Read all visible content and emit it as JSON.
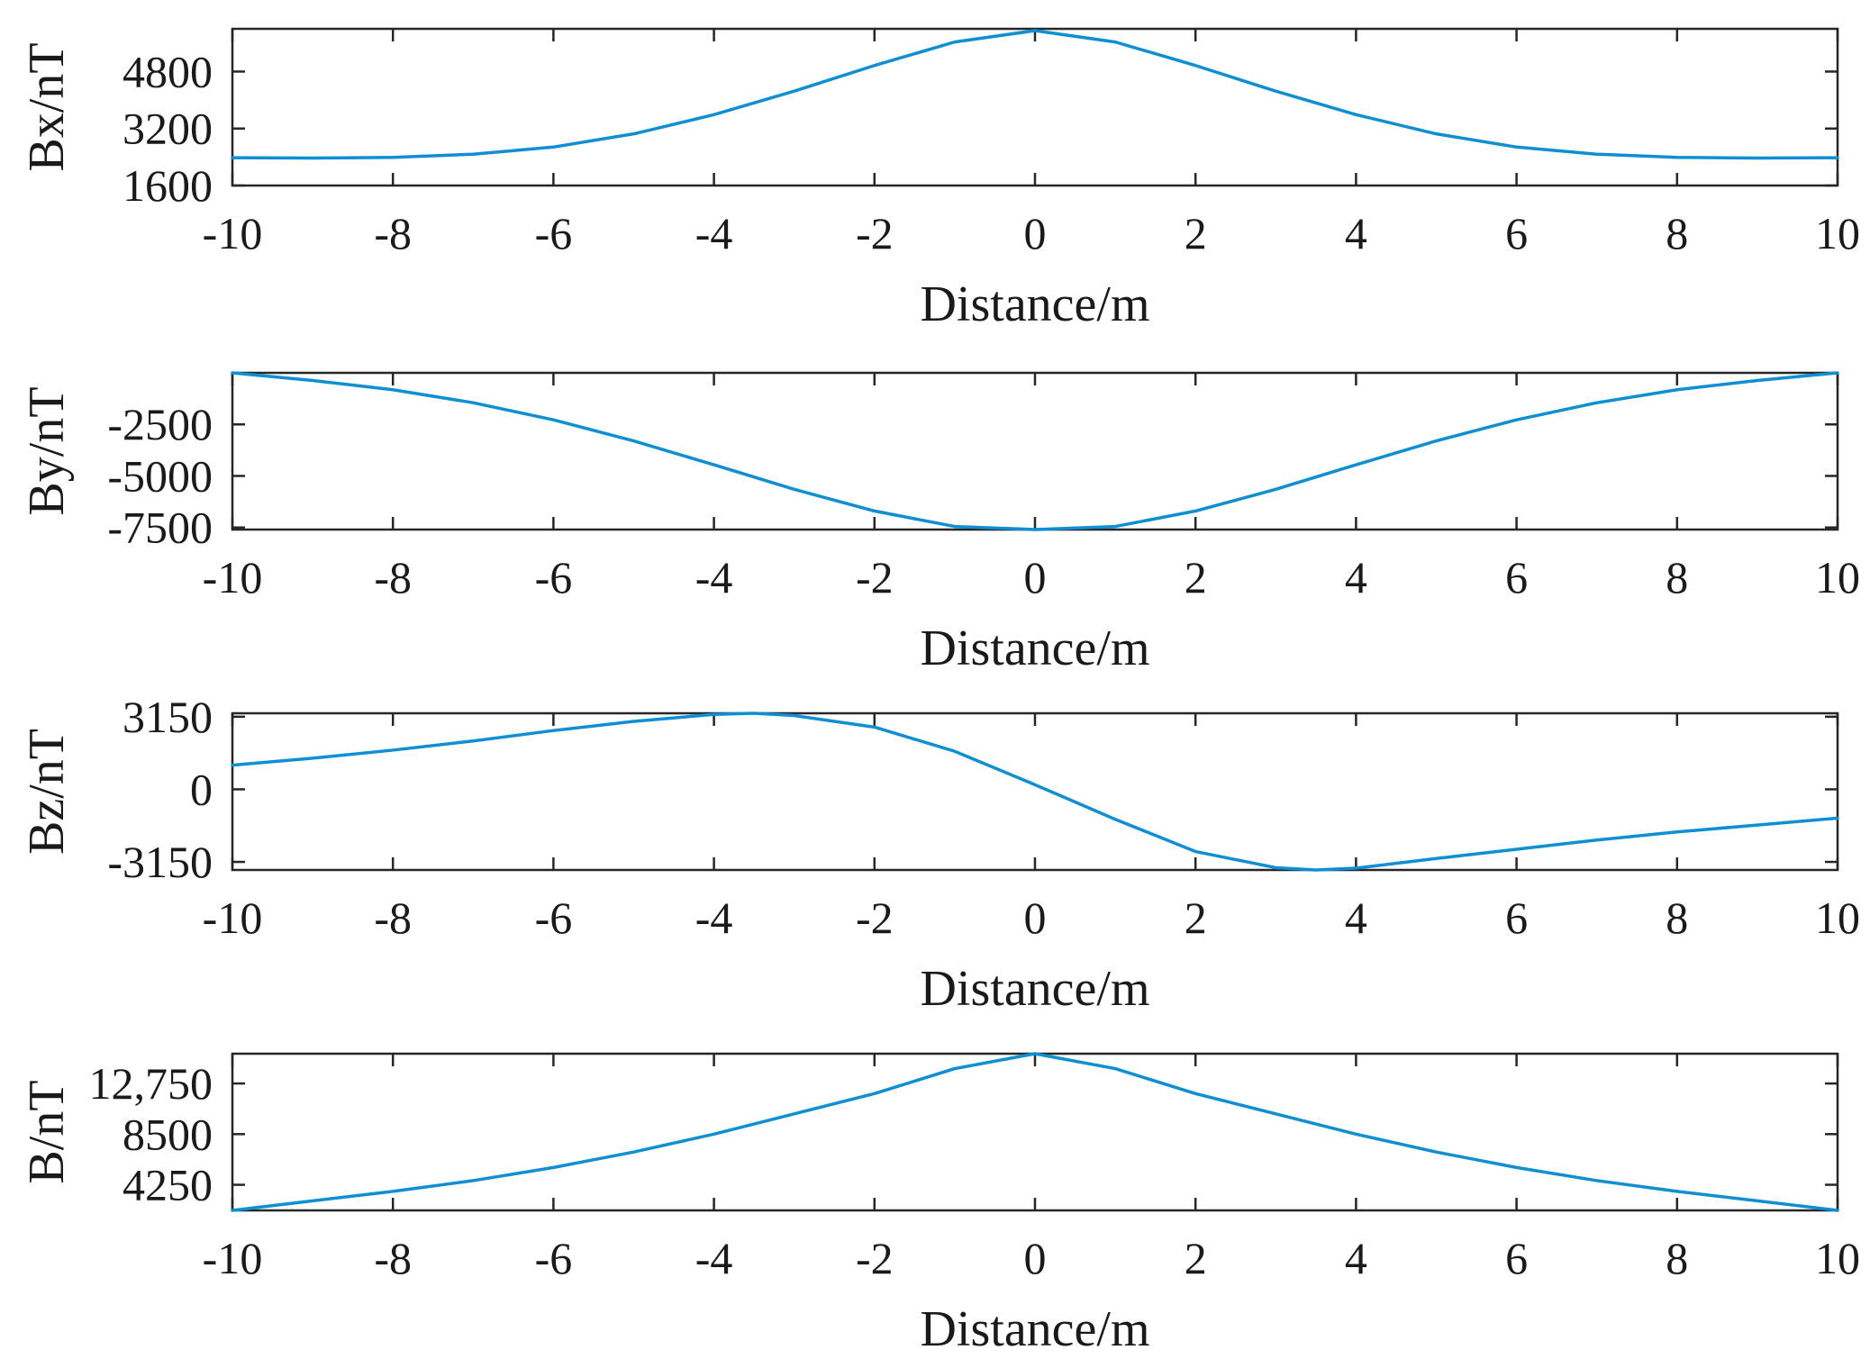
{
  "chart_data": [
    {
      "type": "line",
      "xlabel": "Distance/m",
      "ylabel": "Bx/nT",
      "xlim": [
        -10,
        10
      ],
      "ylim": [
        1600,
        6000
      ],
      "xticks": [
        -10,
        -8,
        -6,
        -4,
        -2,
        0,
        2,
        4,
        6,
        8,
        10
      ],
      "xtick_labels": [
        "-10",
        "-8",
        "-6",
        "-4",
        "-2",
        "0",
        "2",
        "4",
        "6",
        "8",
        "10"
      ],
      "yticks": [
        1600,
        3200,
        4800
      ],
      "ytick_labels": [
        "1600",
        "3200",
        "4800"
      ],
      "grid": false,
      "color": "#0f8fd3",
      "series": [
        {
          "x": [
            -10,
            -9,
            -8,
            -7,
            -6,
            -5,
            -4,
            -3,
            -2,
            -1,
            0,
            1,
            2,
            3,
            4,
            5,
            6,
            7,
            8,
            9,
            10
          ],
          "values": [
            2380,
            2370,
            2390,
            2480,
            2680,
            3050,
            3590,
            4250,
            4970,
            5630,
            5950,
            5630,
            4970,
            4250,
            3590,
            3050,
            2680,
            2480,
            2390,
            2370,
            2380
          ]
        }
      ]
    },
    {
      "type": "line",
      "xlabel": "Distance/m",
      "ylabel": "By/nT",
      "xlim": [
        -10,
        10
      ],
      "ylim": [
        -7600,
        0
      ],
      "xticks": [
        -10,
        -8,
        -6,
        -4,
        -2,
        0,
        2,
        4,
        6,
        8,
        10
      ],
      "xtick_labels": [
        "-10",
        "-8",
        "-6",
        "-4",
        "-2",
        "0",
        "2",
        "4",
        "6",
        "8",
        "10"
      ],
      "yticks": [
        -2500,
        -5000,
        -7500
      ],
      "ytick_labels": [
        "-2500",
        "-5000",
        "-7500"
      ],
      "grid": false,
      "color": "#0f8fd3",
      "series": [
        {
          "x": [
            -10,
            -9,
            -8,
            -7,
            -6,
            -5,
            -4,
            -3,
            -2,
            -1,
            0,
            1,
            2,
            3,
            4,
            5,
            6,
            7,
            8,
            9,
            10
          ],
          "values": [
            0,
            -370,
            -820,
            -1450,
            -2280,
            -3300,
            -4460,
            -5650,
            -6700,
            -7450,
            -7600,
            -7450,
            -6700,
            -5650,
            -4460,
            -3300,
            -2280,
            -1450,
            -820,
            -370,
            0
          ]
        }
      ]
    },
    {
      "type": "line",
      "xlabel": "Distance/m",
      "ylabel": "Bz/nT",
      "xlim": [
        -10,
        10
      ],
      "ylim": [
        -3500,
        3300
      ],
      "xticks": [
        -10,
        -8,
        -6,
        -4,
        -2,
        0,
        2,
        4,
        6,
        8,
        10
      ],
      "xtick_labels": [
        "-10",
        "-8",
        "-6",
        "-4",
        "-2",
        "0",
        "2",
        "4",
        "6",
        "8",
        "10"
      ],
      "yticks": [
        3150,
        0,
        -3150
      ],
      "ytick_labels": [
        "3150",
        "0",
        "-3150"
      ],
      "grid": false,
      "color": "#0f8fd3",
      "series": [
        {
          "x": [
            -10,
            -9,
            -8,
            -7,
            -6,
            -5,
            -4,
            -3.5,
            -3,
            -2,
            -1,
            0,
            1,
            2,
            3,
            3.5,
            4,
            5,
            6,
            7,
            8,
            9,
            10
          ],
          "values": [
            1050,
            1350,
            1700,
            2100,
            2550,
            2950,
            3250,
            3300,
            3200,
            2700,
            1650,
            200,
            -1300,
            -2700,
            -3400,
            -3500,
            -3420,
            -3000,
            -2600,
            -2200,
            -1850,
            -1550,
            -1250
          ]
        }
      ]
    },
    {
      "type": "line",
      "xlabel": "Distance/m",
      "ylabel": "B/nT",
      "xlim": [
        -10,
        10
      ],
      "ylim": [
        2100,
        15250
      ],
      "xticks": [
        -10,
        -8,
        -6,
        -4,
        -2,
        0,
        2,
        4,
        6,
        8,
        10
      ],
      "xtick_labels": [
        "-10",
        "-8",
        "-6",
        "-4",
        "-2",
        "0",
        "2",
        "4",
        "6",
        "8",
        "10"
      ],
      "yticks": [
        4250,
        8500,
        12750
      ],
      "ytick_labels": [
        "4250",
        "8500",
        "12,750"
      ],
      "grid": false,
      "color": "#0f8fd3",
      "series": [
        {
          "x": [
            -10,
            -9,
            -8,
            -7,
            -6,
            -5,
            -4,
            -3,
            -2,
            -1,
            0,
            1,
            2,
            3,
            4,
            5,
            6,
            7,
            8,
            9,
            10
          ],
          "values": [
            2100,
            2900,
            3700,
            4600,
            5700,
            7000,
            8500,
            10200,
            11900,
            14000,
            15250,
            14000,
            11900,
            10200,
            8500,
            7000,
            5700,
            4600,
            3700,
            2900,
            2100
          ]
        }
      ]
    }
  ]
}
